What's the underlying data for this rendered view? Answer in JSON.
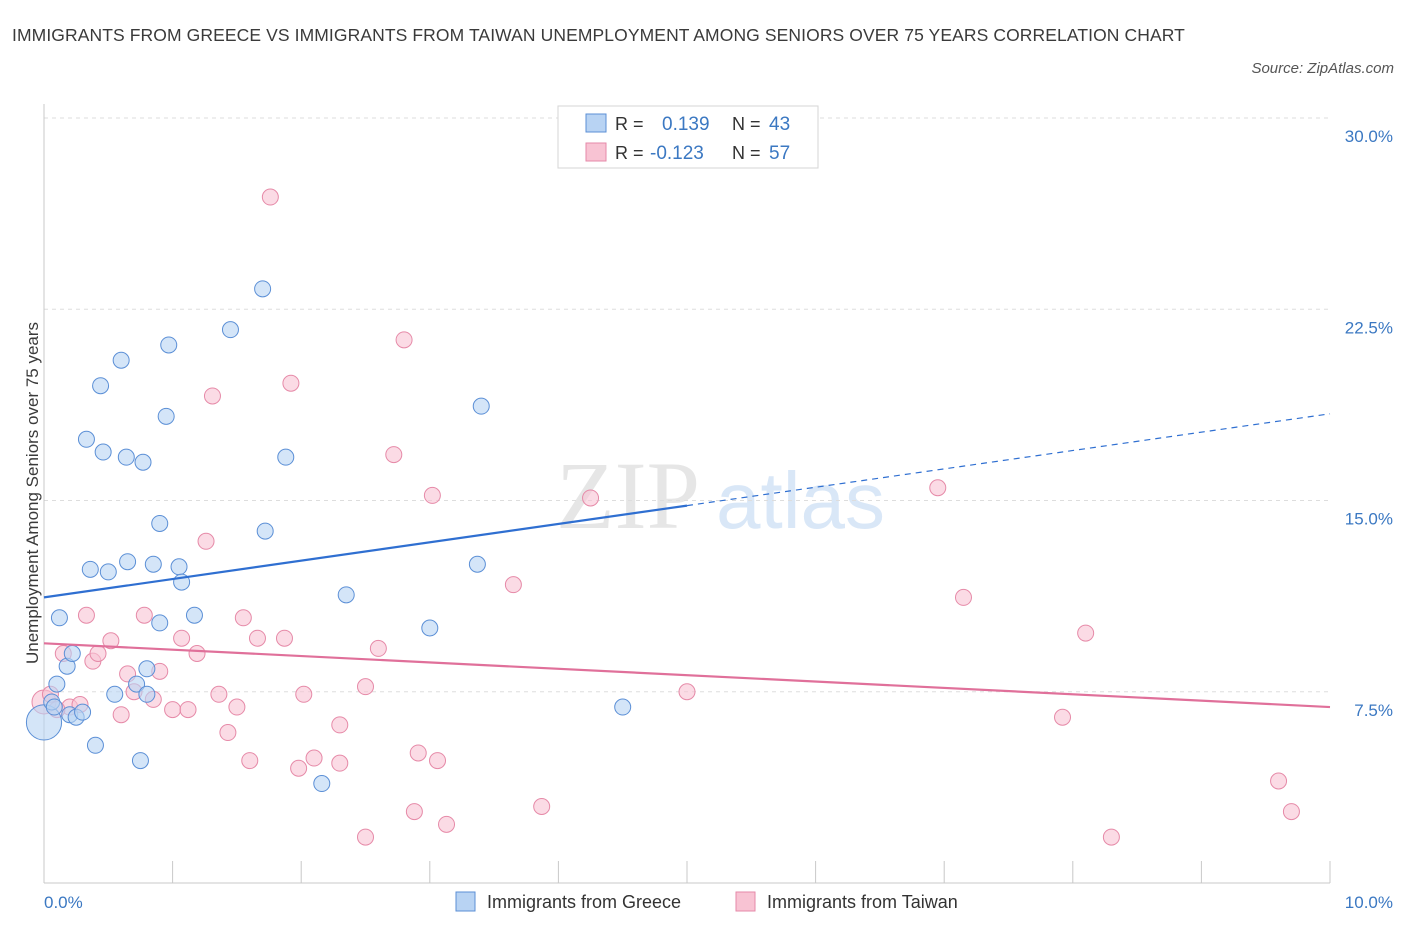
{
  "title": "IMMIGRANTS FROM GREECE VS IMMIGRANTS FROM TAIWAN UNEMPLOYMENT AMONG SENIORS OVER 75 YEARS CORRELATION CHART",
  "source": "Source: ZipAtlas.com",
  "watermark": {
    "zip": "ZIP",
    "atlas": "atlas"
  },
  "colors": {
    "greece_fill": "#b8d3f3",
    "greece_stroke": "#5b8fd6",
    "greece_line": "#2f6fd1",
    "taiwan_fill": "#f8c3d3",
    "taiwan_stroke": "#e68aa8",
    "taiwan_line": "#e0709a",
    "tick_text": "#3b78c2"
  },
  "legend": {
    "r_label": "R =",
    "n_label": "N =",
    "greece_r": "0.139",
    "greece_n": "43",
    "taiwan_r": "-0.123",
    "taiwan_n": "57"
  },
  "chart_data": {
    "type": "scatter",
    "title": "IMMIGRANTS FROM GREECE VS IMMIGRANTS FROM TAIWAN UNEMPLOYMENT AMONG SENIORS OVER 75 YEARS CORRELATION CHART",
    "xlabel": "",
    "ylabel": "Unemployment Among Seniors over 75 years",
    "xlim": [
      0,
      10
    ],
    "ylim": [
      0,
      30
    ],
    "x_tick_labels": [
      "0.0%",
      "10.0%"
    ],
    "y_ticks": [
      7.5,
      15,
      22.5,
      30
    ],
    "y_tick_labels": [
      "7.5%",
      "15.0%",
      "22.5%",
      "30.0%"
    ],
    "grid": true,
    "legend_position": "top-center",
    "series": [
      {
        "name": "Immigrants from Greece",
        "r": 0.139,
        "n": 43,
        "trend": {
          "x": [
            0,
            5
          ],
          "y": [
            11.2,
            14.8
          ]
        },
        "trend_extension": {
          "x": [
            5,
            10
          ],
          "y": [
            14.8,
            18.4
          ]
        },
        "points": [
          [
            0.0,
            6.3,
            3
          ],
          [
            0.1,
            7.8,
            1
          ],
          [
            0.2,
            6.6,
            1
          ],
          [
            0.25,
            6.5,
            1
          ],
          [
            0.12,
            10.4,
            1
          ],
          [
            0.18,
            8.5,
            1
          ],
          [
            0.22,
            9.0,
            1
          ],
          [
            0.36,
            12.3,
            1
          ],
          [
            0.5,
            12.2,
            1
          ],
          [
            0.65,
            12.6,
            1
          ],
          [
            0.85,
            12.5,
            1
          ],
          [
            1.05,
            12.4,
            1
          ],
          [
            1.07,
            11.8,
            1
          ],
          [
            0.9,
            10.2,
            1
          ],
          [
            1.17,
            10.5,
            1
          ],
          [
            0.72,
            7.8,
            1
          ],
          [
            0.55,
            7.4,
            1
          ],
          [
            0.8,
            8.4,
            1
          ],
          [
            0.8,
            7.4,
            1
          ],
          [
            0.4,
            5.4,
            1
          ],
          [
            0.75,
            4.8,
            1
          ],
          [
            0.33,
            17.4,
            1
          ],
          [
            0.46,
            16.9,
            1
          ],
          [
            0.64,
            16.7,
            1
          ],
          [
            0.77,
            16.5,
            1
          ],
          [
            0.44,
            19.5,
            1
          ],
          [
            0.6,
            20.5,
            1
          ],
          [
            0.97,
            21.1,
            1
          ],
          [
            0.95,
            18.3,
            1
          ],
          [
            0.9,
            14.1,
            1
          ],
          [
            1.45,
            21.7,
            1
          ],
          [
            1.7,
            23.3,
            1
          ],
          [
            1.88,
            16.7,
            1
          ],
          [
            1.72,
            13.8,
            1
          ],
          [
            2.35,
            11.3,
            1
          ],
          [
            2.16,
            3.9,
            1
          ],
          [
            3.37,
            12.5,
            1
          ],
          [
            3.0,
            10.0,
            1
          ],
          [
            3.4,
            18.7,
            1
          ],
          [
            4.5,
            6.9,
            1
          ],
          [
            0.06,
            7.1,
            1
          ],
          [
            0.08,
            6.9,
            1
          ],
          [
            0.3,
            6.7,
            1
          ]
        ]
      },
      {
        "name": "Immigrants from Taiwan",
        "r": -0.123,
        "n": 57,
        "trend": {
          "x": [
            0,
            10
          ],
          "y": [
            9.4,
            6.9
          ]
        },
        "points": [
          [
            0.0,
            7.1,
            2
          ],
          [
            0.05,
            7.4,
            1
          ],
          [
            0.15,
            9.0,
            1
          ],
          [
            0.2,
            6.9,
            1
          ],
          [
            0.33,
            10.5,
            1
          ],
          [
            0.38,
            8.7,
            1
          ],
          [
            0.42,
            9.0,
            1
          ],
          [
            0.52,
            9.5,
            1
          ],
          [
            0.6,
            6.6,
            1
          ],
          [
            0.65,
            8.2,
            1
          ],
          [
            0.7,
            7.5,
            1
          ],
          [
            0.78,
            10.5,
            1
          ],
          [
            0.85,
            7.2,
            1
          ],
          [
            0.9,
            8.3,
            1
          ],
          [
            1.0,
            6.8,
            1
          ],
          [
            1.07,
            9.6,
            1
          ],
          [
            1.12,
            6.8,
            1
          ],
          [
            1.19,
            9.0,
            1
          ],
          [
            1.26,
            13.4,
            1
          ],
          [
            1.36,
            7.4,
            1
          ],
          [
            1.43,
            5.9,
            1
          ],
          [
            1.5,
            6.9,
            1
          ],
          [
            1.55,
            10.4,
            1
          ],
          [
            1.6,
            4.8,
            1
          ],
          [
            1.66,
            9.6,
            1
          ],
          [
            1.76,
            26.9,
            1
          ],
          [
            1.87,
            9.6,
            1
          ],
          [
            1.92,
            19.6,
            1
          ],
          [
            1.98,
            4.5,
            1
          ],
          [
            2.02,
            7.4,
            1
          ],
          [
            2.1,
            4.9,
            1
          ],
          [
            2.3,
            4.7,
            1
          ],
          [
            2.3,
            6.2,
            1
          ],
          [
            2.5,
            7.7,
            1
          ],
          [
            2.5,
            1.8,
            1
          ],
          [
            2.6,
            9.2,
            1
          ],
          [
            2.8,
            21.3,
            1
          ],
          [
            2.72,
            16.8,
            1
          ],
          [
            2.88,
            2.8,
            1
          ],
          [
            2.91,
            5.1,
            1
          ],
          [
            3.02,
            15.2,
            1
          ],
          [
            3.06,
            4.8,
            1
          ],
          [
            3.13,
            2.3,
            1
          ],
          [
            3.65,
            11.7,
            1
          ],
          [
            3.87,
            3.0,
            1
          ],
          [
            4.25,
            15.1,
            1
          ],
          [
            5.0,
            7.5,
            1
          ],
          [
            6.95,
            15.5,
            1
          ],
          [
            7.15,
            11.2,
            1
          ],
          [
            7.92,
            6.5,
            1
          ],
          [
            8.1,
            9.8,
            1
          ],
          [
            8.3,
            1.8,
            1
          ],
          [
            9.6,
            4.0,
            1
          ],
          [
            9.7,
            2.8,
            1
          ],
          [
            1.31,
            19.1,
            1
          ],
          [
            0.1,
            6.8,
            1
          ],
          [
            0.28,
            7.0,
            1
          ]
        ]
      }
    ]
  },
  "bottom_legend": {
    "greece": "Immigrants from Greece",
    "taiwan": "Immigrants from Taiwan"
  }
}
